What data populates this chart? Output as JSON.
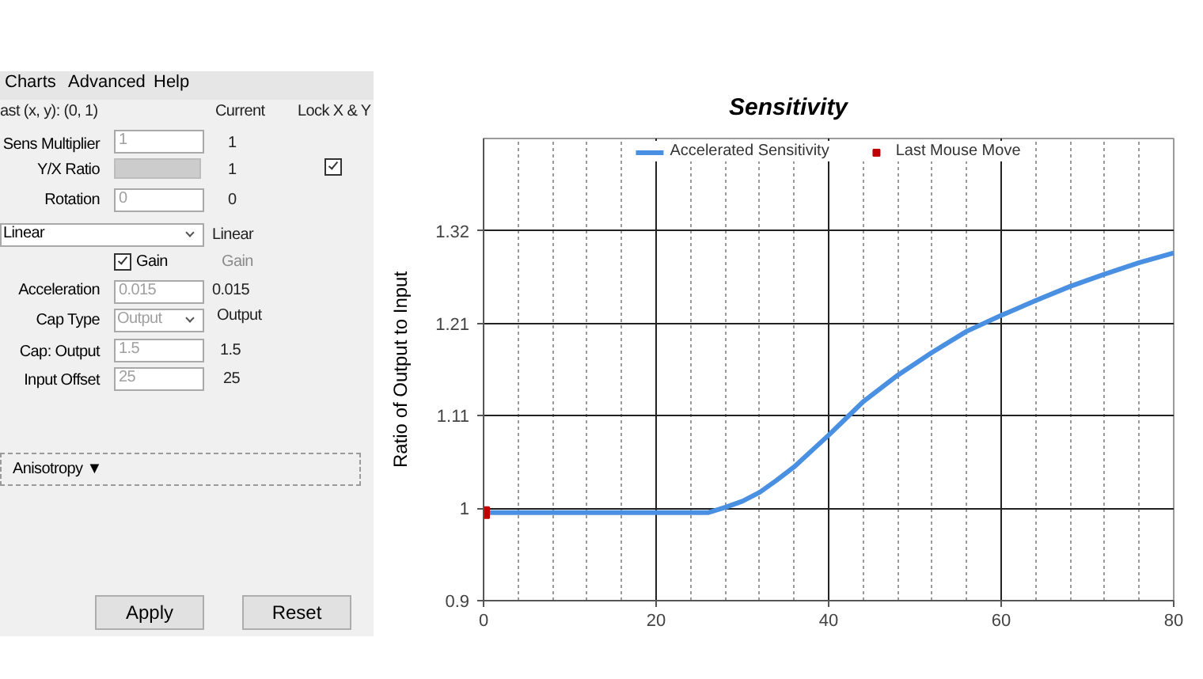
{
  "chart_data": [
    {
      "type": "other",
      "annotations": [
        "Charts",
        "Advanced",
        "Help",
        "ast (x, y): (0, 1)",
        "Current",
        "Lock X & Y",
        "Sens Multiplier",
        "1",
        "1",
        "Y/X Ratio",
        "1",
        "Rotation",
        "0",
        "0",
        "Linear",
        "Linear",
        "Gain",
        "Gain",
        "Acceleration",
        "0.015",
        "0.015",
        "Cap Type",
        "Output",
        "Output",
        "Cap: Output",
        "1.5",
        "1.5",
        "Input Offset",
        "25",
        "25",
        "Anisotropy ▼",
        "Apply",
        "Reset"
      ]
    },
    {
      "type": "line",
      "title": "Sensitivity",
      "ylabel": "Ratio of Output to Input",
      "series": [
        {
          "name": "Accelerated Sensitivity",
          "color": "#4a90e2",
          "x": [
            0,
            25,
            26,
            28,
            30,
            32,
            34,
            36,
            38,
            40,
            42,
            44,
            46,
            48,
            52,
            56,
            60,
            64,
            68,
            72,
            76,
            80
          ],
          "values": [
            1,
            1,
            1,
            1.006,
            1.013,
            1.023,
            1.037,
            1.052,
            1.07,
            1.088,
            1.107,
            1.126,
            1.141,
            1.156,
            1.182,
            1.206,
            1.224,
            1.241,
            1.257,
            1.271,
            1.284,
            1.295
          ]
        },
        {
          "name": "Last Mouse Move",
          "type": "scatter",
          "marker": "square",
          "color": "#c00000",
          "x": [
            0
          ],
          "values": [
            1
          ]
        }
      ],
      "xlim": [
        0,
        80
      ],
      "ylim": [
        0.9,
        1.425
      ],
      "xticks": [
        0,
        {
          "value": 4,
          "label": null
        },
        {
          "value": 8,
          "label": null
        },
        {
          "value": 12,
          "label": null
        },
        {
          "value": 16,
          "label": null
        },
        20,
        {
          "value": 24,
          "label": null
        },
        {
          "value": 28,
          "label": null
        },
        {
          "value": 32,
          "label": null
        },
        {
          "value": 36,
          "label": null
        },
        40,
        {
          "value": 44,
          "label": null
        },
        {
          "value": 48,
          "label": null
        },
        {
          "value": 52,
          "label": null
        },
        {
          "value": 56,
          "label": null
        },
        60,
        {
          "value": 64,
          "label": null
        },
        {
          "value": 68,
          "label": null
        },
        {
          "value": 72,
          "label": null
        },
        {
          "value": 76,
          "label": null
        },
        80
      ],
      "yticks": [
        0.9,
        {
          "value": 1.005,
          "label": "1"
        },
        1.11,
        {
          "value": 1.215,
          "label": "1.21"
        },
        1.32
      ],
      "grid": true,
      "legend": "top"
    }
  ]
}
